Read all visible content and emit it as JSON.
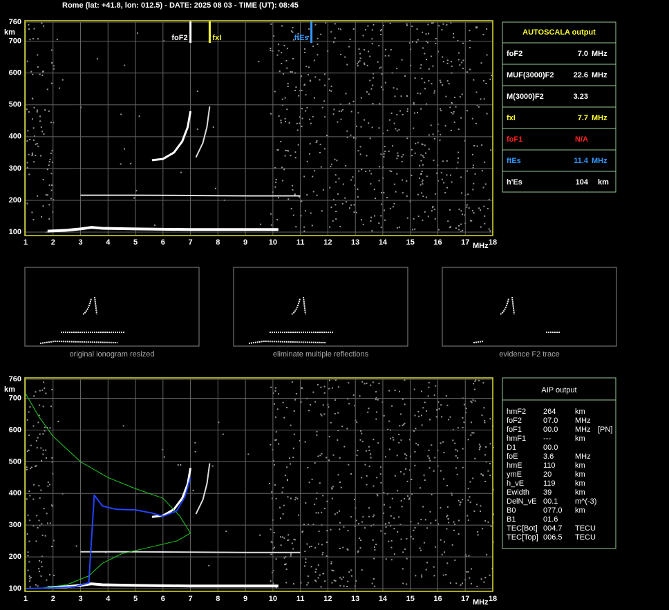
{
  "header": {
    "title": "Rome (lat: +41.8, lon: 012.5) - DATE: 2025 08 03 - TIME (UT): 08:45"
  },
  "chart_data": [
    {
      "type": "line",
      "xlabel": "MHz",
      "ylabel": "km",
      "xlim": [
        1,
        18
      ],
      "ylim": [
        100,
        760
      ],
      "xticks": [
        1,
        2,
        3,
        4,
        5,
        6,
        7,
        8,
        9,
        10,
        11,
        12,
        13,
        14,
        15,
        16,
        17,
        18
      ],
      "yticks": [
        100,
        200,
        300,
        400,
        500,
        600,
        700,
        760
      ],
      "grid": true,
      "markers": [
        {
          "label": "foF2",
          "value": 7.0,
          "color": "#ffffff",
          "label_side": "left"
        },
        {
          "label": "fxI",
          "value": 7.7,
          "color": "#ffff33",
          "label_side": "right"
        },
        {
          "label": "ftEs",
          "value": 11.4,
          "color": "#3399ff",
          "label_side": "left"
        }
      ],
      "series": [
        {
          "color": "#ffffff",
          "line_width": 4,
          "x": [
            1.8,
            2.5,
            3.0,
            3.4,
            3.8,
            5.0,
            7.0,
            9.0,
            10.2
          ],
          "values": [
            103,
            106,
            110,
            115,
            112,
            110,
            108,
            108,
            108
          ]
        },
        {
          "color": "#dddddd",
          "line_width": 2,
          "x": [
            3.0,
            5.0,
            7.0,
            9.0,
            11.0
          ],
          "values": [
            216,
            216,
            215,
            214,
            214
          ]
        },
        {
          "color": "#ffffff",
          "line_width": 3,
          "x": [
            5.6,
            6.0,
            6.4,
            6.7,
            6.9,
            7.0
          ],
          "values": [
            326,
            330,
            350,
            385,
            430,
            480
          ]
        },
        {
          "color": "#dddddd",
          "line_width": 2,
          "x": [
            7.2,
            7.45,
            7.6,
            7.7
          ],
          "values": [
            335,
            380,
            430,
            495
          ]
        }
      ]
    },
    {
      "type": "line",
      "xlabel": "MHz",
      "ylabel": "km",
      "xlim": [
        1,
        18
      ],
      "ylim": [
        100,
        760
      ],
      "xticks": [
        1,
        2,
        3,
        4,
        5,
        6,
        7,
        8,
        9,
        10,
        11,
        12,
        13,
        14,
        15,
        16,
        17,
        18
      ],
      "yticks": [
        100,
        200,
        300,
        400,
        500,
        600,
        700,
        760
      ],
      "grid": true,
      "series": [
        {
          "color": "#ffffff",
          "line_width": 4,
          "x": [
            1.8,
            2.5,
            3.0,
            3.4,
            3.8,
            5.0,
            7.0,
            9.0,
            10.2
          ],
          "values": [
            103,
            106,
            110,
            115,
            112,
            110,
            108,
            108,
            108
          ]
        },
        {
          "color": "#dddddd",
          "line_width": 2,
          "x": [
            3.0,
            5.0,
            7.0,
            9.0,
            11.0
          ],
          "values": [
            216,
            216,
            215,
            214,
            214
          ]
        },
        {
          "color": "#ffffff",
          "line_width": 3,
          "x": [
            5.6,
            6.0,
            6.4,
            6.7,
            6.9,
            7.0
          ],
          "values": [
            326,
            330,
            350,
            385,
            430,
            480
          ]
        },
        {
          "color": "#dddddd",
          "line_width": 2,
          "x": [
            7.2,
            7.45,
            7.6,
            7.7
          ],
          "values": [
            335,
            380,
            430,
            495
          ]
        },
        {
          "color": "#22cc22",
          "line_width": 1,
          "x": [
            1.0,
            1.5,
            2.0,
            3.0,
            4.0,
            5.0,
            6.0,
            6.6,
            7.0,
            6.5,
            5.5,
            4.5,
            3.8,
            3.3,
            2.5,
            1.6,
            1.0
          ],
          "values": [
            715,
            640,
            580,
            500,
            450,
            415,
            385,
            330,
            275,
            250,
            230,
            210,
            180,
            140,
            112,
            102,
            100
          ]
        },
        {
          "color": "#2244ff",
          "line_width": 2,
          "x": [
            1.0,
            2.0,
            2.8,
            3.3,
            3.5,
            3.8,
            4.3,
            5.0,
            5.6,
            6.0,
            6.5,
            6.8,
            7.0
          ],
          "values": [
            100,
            102,
            106,
            118,
            395,
            360,
            350,
            348,
            338,
            328,
            345,
            390,
            450
          ]
        }
      ]
    }
  ],
  "thumbnails": [
    {
      "caption": "original ionogram resized"
    },
    {
      "caption": "eliminate multiple reflections"
    },
    {
      "caption": "evidence F2 trace"
    }
  ],
  "autoscala": {
    "title": "AUTOSCALA output",
    "rows": [
      {
        "label": "foF2",
        "value": "7.0",
        "unit": "MHz",
        "color": "#ffffff"
      },
      {
        "label": "MUF(3000)F2",
        "value": "22.6",
        "unit": "MHz",
        "color": "#ffffff"
      },
      {
        "label": "M(3000)F2",
        "value": "3.23",
        "color": "#ffffff"
      },
      {
        "label": "fxI",
        "value": "7.7",
        "unit": "MHz",
        "color": "#ffff33"
      },
      {
        "label": "foF1",
        "value": "N/A",
        "color": "#ff2222"
      },
      {
        "label": "ftEs",
        "value": "11.4",
        "unit": "MHz",
        "color": "#3399ff"
      },
      {
        "label": "h'Es",
        "value": "104",
        "unit": "km",
        "color": "#ffffff"
      }
    ]
  },
  "aip": {
    "title": "AIP output",
    "rows": [
      [
        "hmF2",
        "264",
        "km"
      ],
      [
        "foF2",
        "07.0",
        "MHz"
      ],
      [
        "foF1",
        "00.0",
        "MHz",
        "[PN]"
      ],
      [
        "hmF1",
        "---",
        "km"
      ],
      [
        "D1",
        "00.0"
      ],
      [
        "foE",
        "3.6",
        "MHz"
      ],
      [
        "hmE",
        "110",
        "km"
      ],
      [
        "ymE",
        "20",
        "km"
      ],
      [
        "h_vE",
        "119",
        "km"
      ],
      [
        "Ewidth",
        "39",
        "km"
      ],
      [
        "DelN_vE",
        "00.1",
        "m^(-3)"
      ],
      [
        "B0",
        "077.0",
        "km"
      ],
      [
        "B1",
        "01.6"
      ],
      [
        "TEC[Bot]",
        "004.7",
        "TECU"
      ],
      [
        "TEC[Top]",
        "006.5",
        "TECU"
      ]
    ]
  }
}
